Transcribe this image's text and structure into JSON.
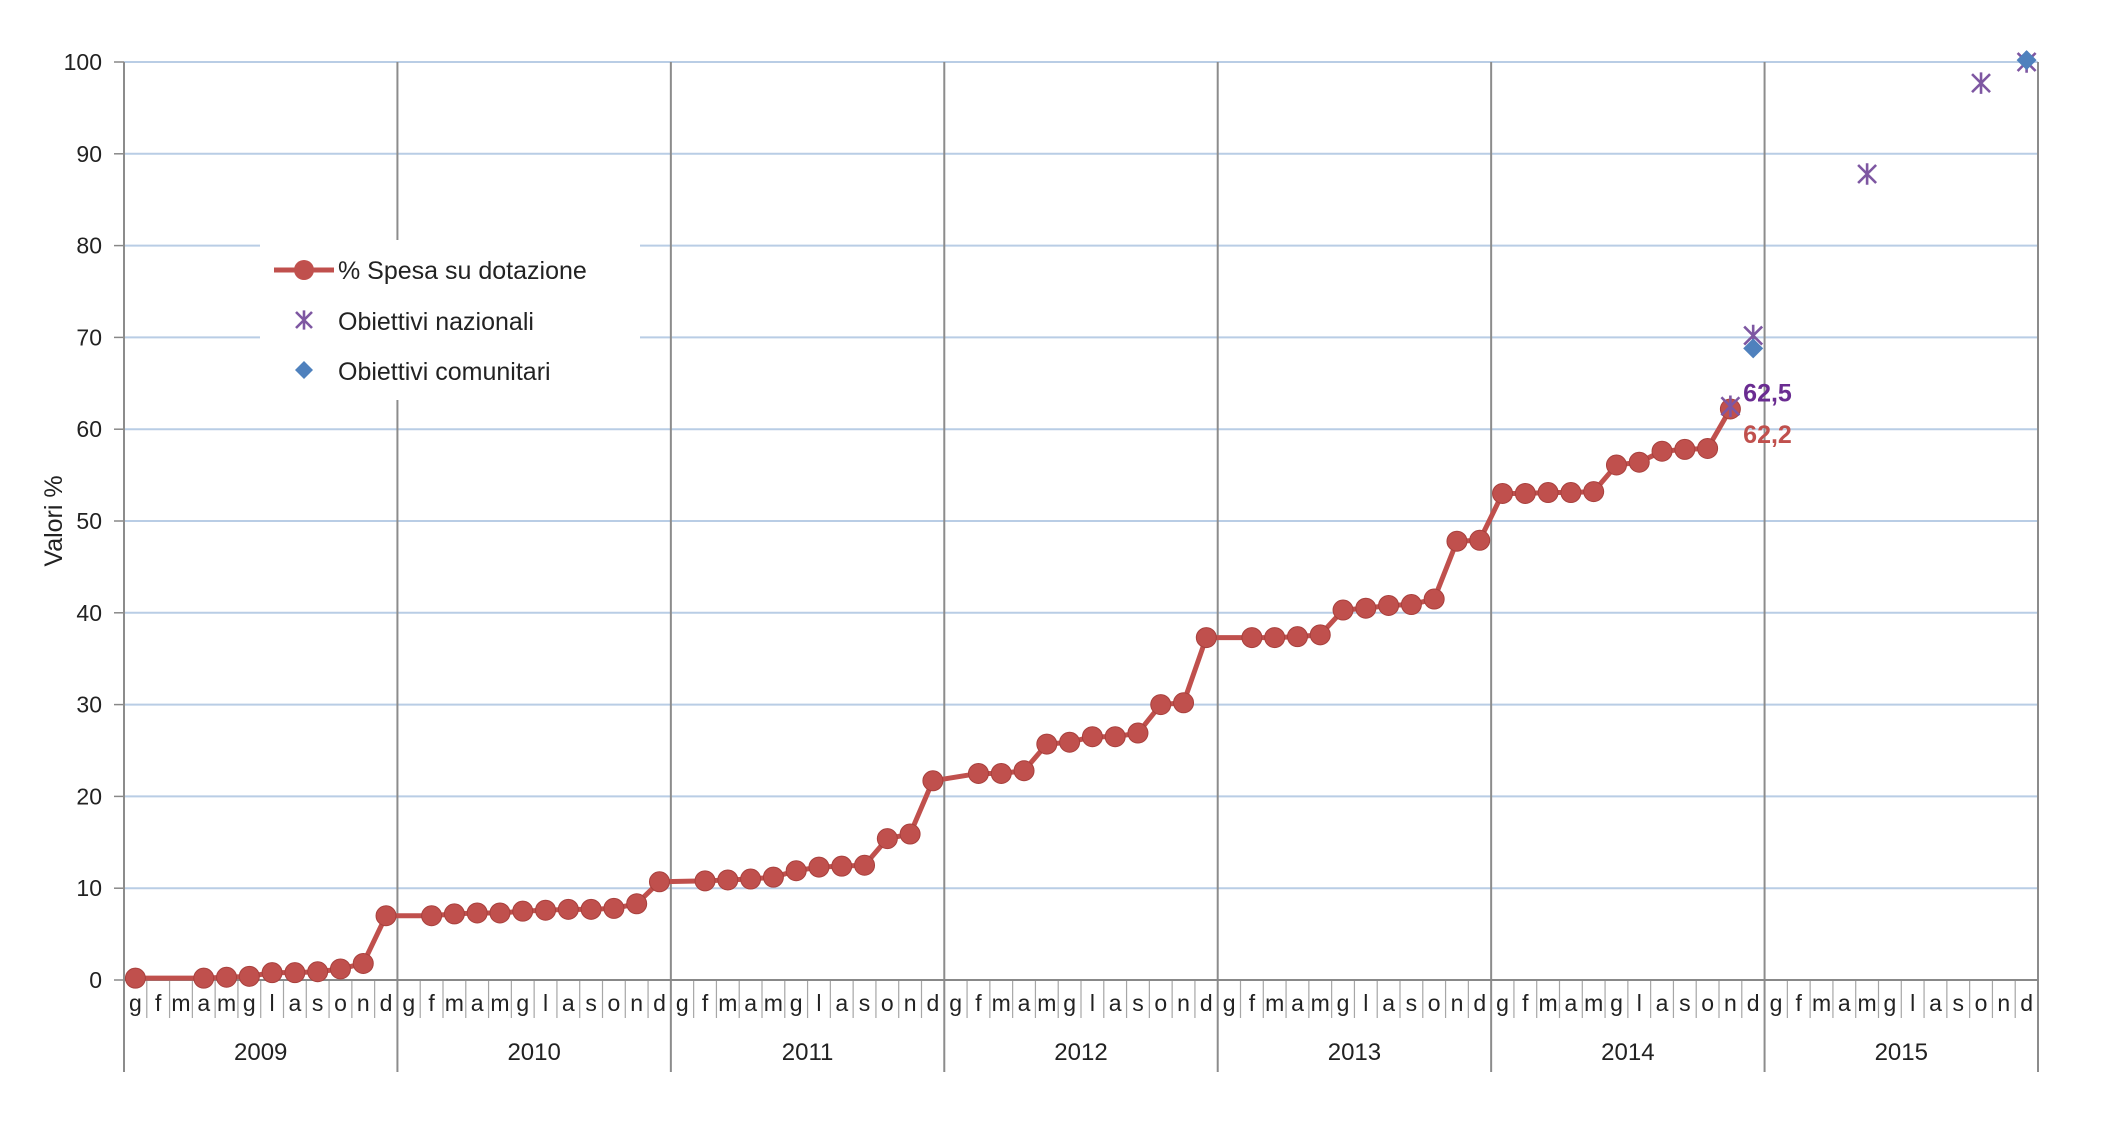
{
  "colors": {
    "spesa": "#C0504D",
    "nazionali": "#7E57A2",
    "comunitari": "#4F81BD",
    "grid": "#B9CDE5",
    "year_divider": "#8C8C8C",
    "annot_nazionali": "#6A2C91",
    "annot_spesa": "#C0504D"
  },
  "chart_data": {
    "type": "line",
    "title": "",
    "xlabel": "",
    "ylabel": "Valori %",
    "ylim": [
      0,
      100
    ],
    "yticks": [
      0,
      10,
      20,
      30,
      40,
      50,
      60,
      70,
      80,
      90,
      100
    ],
    "grid": true,
    "legend_position": "upper-left",
    "years": [
      "2009",
      "2010",
      "2011",
      "2012",
      "2013",
      "2014",
      "2015"
    ],
    "months": [
      "g",
      "f",
      "m",
      "a",
      "m",
      "g",
      "l",
      "a",
      "s",
      "o",
      "n",
      "d"
    ],
    "series": [
      {
        "name": "% Spesa su dotazione",
        "kind": "line-markers",
        "color": "#C0504D",
        "points": [
          [
            "2009-01",
            0.2
          ],
          [
            "2009-04",
            0.2
          ],
          [
            "2009-05",
            0.3
          ],
          [
            "2009-06",
            0.4
          ],
          [
            "2009-07",
            0.8
          ],
          [
            "2009-08",
            0.8
          ],
          [
            "2009-09",
            0.9
          ],
          [
            "2009-10",
            1.2
          ],
          [
            "2009-11",
            1.8
          ],
          [
            "2009-12",
            7.0
          ],
          [
            "2010-02",
            7.0
          ],
          [
            "2010-03",
            7.2
          ],
          [
            "2010-04",
            7.3
          ],
          [
            "2010-05",
            7.3
          ],
          [
            "2010-06",
            7.5
          ],
          [
            "2010-07",
            7.6
          ],
          [
            "2010-08",
            7.7
          ],
          [
            "2010-09",
            7.7
          ],
          [
            "2010-10",
            7.8
          ],
          [
            "2010-11",
            8.3
          ],
          [
            "2010-12",
            10.7
          ],
          [
            "2011-02",
            10.8
          ],
          [
            "2011-03",
            10.9
          ],
          [
            "2011-04",
            11.0
          ],
          [
            "2011-05",
            11.2
          ],
          [
            "2011-06",
            11.9
          ],
          [
            "2011-07",
            12.3
          ],
          [
            "2011-08",
            12.4
          ],
          [
            "2011-09",
            12.5
          ],
          [
            "2011-10",
            15.4
          ],
          [
            "2011-11",
            15.9
          ],
          [
            "2011-12",
            21.7
          ],
          [
            "2012-02",
            22.5
          ],
          [
            "2012-03",
            22.5
          ],
          [
            "2012-04",
            22.8
          ],
          [
            "2012-05",
            25.7
          ],
          [
            "2012-06",
            25.9
          ],
          [
            "2012-07",
            26.5
          ],
          [
            "2012-08",
            26.5
          ],
          [
            "2012-09",
            26.9
          ],
          [
            "2012-10",
            30.0
          ],
          [
            "2012-11",
            30.2
          ],
          [
            "2012-12",
            37.3
          ],
          [
            "2013-02",
            37.3
          ],
          [
            "2013-03",
            37.3
          ],
          [
            "2013-04",
            37.4
          ],
          [
            "2013-05",
            37.6
          ],
          [
            "2013-06",
            40.3
          ],
          [
            "2013-07",
            40.5
          ],
          [
            "2013-08",
            40.8
          ],
          [
            "2013-09",
            40.9
          ],
          [
            "2013-10",
            41.5
          ],
          [
            "2013-11",
            47.8
          ],
          [
            "2013-12",
            47.9
          ],
          [
            "2014-01",
            53.0
          ],
          [
            "2014-02",
            53.0
          ],
          [
            "2014-03",
            53.1
          ],
          [
            "2014-04",
            53.1
          ],
          [
            "2014-05",
            53.2
          ],
          [
            "2014-06",
            56.1
          ],
          [
            "2014-07",
            56.4
          ],
          [
            "2014-08",
            57.6
          ],
          [
            "2014-09",
            57.8
          ],
          [
            "2014-10",
            57.9
          ],
          [
            "2014-11",
            62.2
          ]
        ]
      },
      {
        "name": "Obiettivi nazionali",
        "kind": "markers-star",
        "color": "#7E57A2",
        "points": [
          [
            "2014-11",
            62.5
          ],
          [
            "2014-12",
            70.2
          ],
          [
            "2015-05",
            87.8
          ],
          [
            "2015-10",
            97.7
          ],
          [
            "2015-12",
            100
          ]
        ]
      },
      {
        "name": "Obiettivi comunitari",
        "kind": "markers-diamond",
        "color": "#4F81BD",
        "points": [
          [
            "2014-12",
            68.8
          ],
          [
            "2015-12",
            100.2
          ]
        ]
      }
    ],
    "annotations": [
      {
        "text": "62,5",
        "date": "2014-12",
        "value": 62.5,
        "color": "#6A2C91"
      },
      {
        "text": "62,2",
        "date": "2014-12",
        "value": 62.2,
        "color": "#C0504D"
      }
    ]
  }
}
